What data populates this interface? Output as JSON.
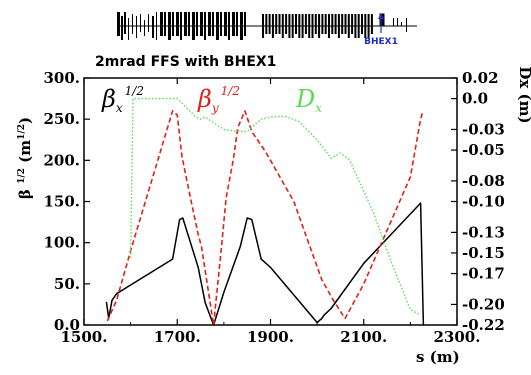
{
  "chart_data": {
    "type": "line",
    "title": "2mrad FFS with BHEX1",
    "xlabel": "s (m)",
    "ylabel": "β^1/2 (m^1/2)",
    "y2label": "Dx (m)",
    "xlim": [
      1500,
      2300
    ],
    "ylim": [
      0,
      300
    ],
    "y2lim": [
      -0.22,
      0.02
    ],
    "x_ticks": [
      1500,
      1700,
      1900,
      2100,
      2300
    ],
    "x_tick_labels": [
      "1500.",
      "1700.",
      "1900.",
      "2100.",
      "2300."
    ],
    "y_ticks": [
      0,
      50,
      100,
      150,
      200,
      250,
      300
    ],
    "y_tick_labels": [
      "0.0",
      "50.",
      "100.",
      "150.",
      "200.",
      "250.",
      "300."
    ],
    "y2_ticks": [
      0.02,
      0.0,
      -0.03,
      -0.05,
      -0.08,
      -0.1,
      -0.13,
      -0.15,
      -0.17,
      -0.2,
      -0.22
    ],
    "y2_tick_labels": [
      "0.02",
      "0.0",
      "-0.03",
      "-0.05",
      "-0.08",
      "-0.10",
      "-0.13",
      "-0.15",
      "-0.17",
      "-0.20",
      "-0.22"
    ],
    "grid": false,
    "annotations": [
      {
        "text": "BHEX1",
        "at_x": 2165
      }
    ],
    "series": [
      {
        "name": "βx",
        "symbol": "β",
        "subscript": "x",
        "superscript": "1/2",
        "axis": "left",
        "style": "solid",
        "color": "#000000",
        "x": [
          1548,
          1553,
          1560,
          1570,
          1690,
          1705,
          1712,
          1745,
          1760,
          1778,
          1792,
          1800,
          1835,
          1850,
          1860,
          1880,
          1900,
          2000,
          2010,
          2015,
          2030,
          2100,
          2222,
          2228
        ],
        "y": [
          28,
          8,
          30,
          38,
          80,
          128,
          130,
          70,
          27,
          0,
          25,
          40,
          95,
          130,
          128,
          80,
          70,
          3,
          8,
          12,
          20,
          75,
          148,
          0
        ]
      },
      {
        "name": "βy",
        "symbol": "β",
        "subscript": "y",
        "superscript": "1/2",
        "axis": "left",
        "style": "dashed",
        "color": "#e0201a",
        "x": [
          1550,
          1570,
          1600,
          1690,
          1700,
          1710,
          1730,
          1745,
          1752,
          1778,
          1795,
          1805,
          1820,
          1830,
          1845,
          1860,
          1890,
          1950,
          2010,
          2035,
          2055,
          2060,
          2100,
          2200,
          2222,
          2226
        ],
        "y": [
          5,
          30,
          90,
          260,
          255,
          205,
          150,
          110,
          95,
          0,
          95,
          155,
          200,
          240,
          260,
          235,
          210,
          150,
          55,
          30,
          12,
          8,
          50,
          180,
          250,
          258
        ]
      },
      {
        "name": "Dx",
        "symbol": "D",
        "subscript": "x",
        "superscript": "",
        "axis": "right",
        "style": "dotted",
        "color": "#55dd55",
        "x": [
          1600,
          1605,
          1700,
          1740,
          1750,
          1760,
          1800,
          1830,
          1850,
          1880,
          1900,
          1930,
          1960,
          2000,
          2030,
          2050,
          2070,
          2120,
          2160,
          2200,
          2220
        ],
        "y": [
          -0.155,
          0.0,
          0.0,
          -0.018,
          -0.02,
          -0.018,
          -0.03,
          -0.032,
          -0.032,
          -0.02,
          -0.018,
          -0.017,
          -0.022,
          -0.04,
          -0.058,
          -0.053,
          -0.06,
          -0.11,
          -0.16,
          -0.205,
          -0.21
        ]
      }
    ]
  }
}
